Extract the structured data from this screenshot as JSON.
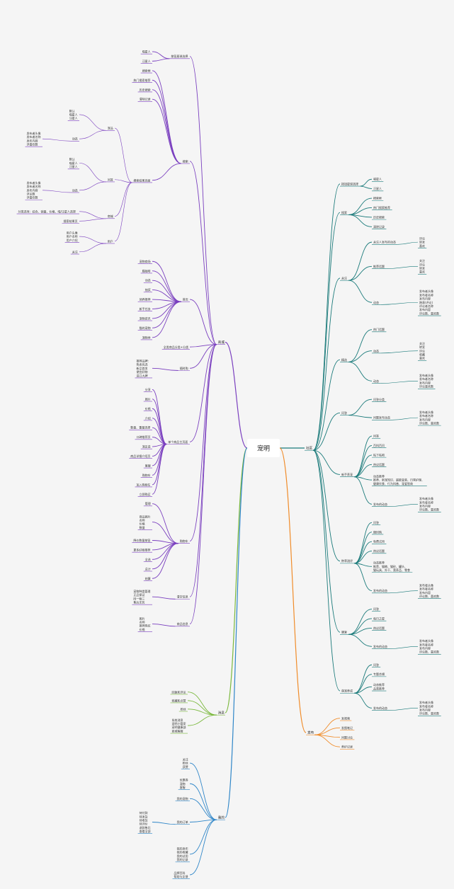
{
  "root": "宠明",
  "branches": [
    {
      "label": "社区",
      "color": "#1a7a7a",
      "children": [
        {
          "label": "按钮星球选择",
          "children": [
            {
              "label": "喵星人"
            },
            {
              "label": "汪星人"
            }
          ]
        },
        {
          "label": "搜索",
          "children": [
            {
              "label": "搜索框"
            },
            {
              "label": "热门搜索推荐"
            },
            {
              "label": "历史搜索"
            },
            {
              "label": "清除记录"
            }
          ]
        },
        {
          "label": "关注",
          "children": [
            {
              "label": "关注人发布的动态",
              "children": [
                {
                  "label": "评论\n转发\n喜欢"
                }
              ]
            },
            {
              "label": "推荐话题",
              "children": [
                {
                  "label": "关注\n评论\n转发\n喜欢"
                }
              ]
            },
            {
              "label": "动态",
              "children": [
                {
                  "label": "发布者头像\n发布者名称\n发布内容\n跨表(评论)\n评论者名称\n发布内容\n评论数、喜欢数"
                }
              ]
            }
          ]
        },
        {
          "label": "精选",
          "children": [
            {
              "label": "热门话题"
            },
            {
              "label": "动态",
              "children": [
                {
                  "label": "关注\n转发\n评论\n收藏\n喜欢"
                }
              ]
            },
            {
              "label": "动态",
              "children": [
                {
                  "label": "发布者头像\n发布者名称\n发布内容\n评论喜欢数"
                }
              ]
            }
          ]
        },
        {
          "label": "问答",
          "children": [
            {
              "label": "问答分类"
            },
            {
              "label": "问题发布动态",
              "children": [
                {
                  "label": "发布者头像\n发布者名称\n发布内容\n评论数、喜欢数"
                }
              ]
            }
          ]
        },
        {
          "label": "新手养宠",
          "children": [
            {
              "label": "问答"
            },
            {
              "label": "百科百问"
            },
            {
              "label": "帖下帖吧"
            },
            {
              "label": "热议话题"
            },
            {
              "label": "动态推荐\n推荐、新宠知识、超能变装、日常护理、\n健康饮食、行为科普、宠爱智商"
            },
            {
              "label": "发布的动态",
              "children": [
                {
                  "label": "发布者头像\n发布者名称\n发布内容\n评论数、喜欢数"
                }
              ]
            }
          ]
        },
        {
          "label": "种草测评",
          "children": [
            {
              "label": "问答"
            },
            {
              "label": "随时购"
            },
            {
              "label": "免费试用"
            },
            {
              "label": "热议话题"
            },
            {
              "label": "动态推荐\n推荐、猫粮、猫砂、罐头、\n猫玩具、外干、营养品、零食"
            },
            {
              "label": "发布的动态",
              "children": [
                {
                  "label": "发布者头像\n发布者名称\n发布内容\n评论数、喜欢数"
                }
              ]
            }
          ]
        },
        {
          "label": "康复",
          "children": [
            {
              "label": "问答"
            },
            {
              "label": "每日之星"
            },
            {
              "label": "热议话题"
            },
            {
              "label": "发布的动态",
              "children": [
                {
                  "label": "发布者头像\n发布者名称\n发布内容\n评论数、喜欢数"
                }
              ]
            }
          ]
        },
        {
          "label": "萌宠养成",
          "children": [
            {
              "label": "问答"
            },
            {
              "label": "专题合辑"
            },
            {
              "label": "动态推荐\n品类推荐"
            },
            {
              "label": "发布的动态",
              "children": [
                {
                  "label": "发布者头像\n发布者名称\n发布内容\n评论数、喜欢数"
                }
              ]
            }
          ]
        }
      ]
    },
    {
      "label": "发布",
      "color": "#f08c2a",
      "children": [
        {
          "label": "发视频"
        },
        {
          "label": "发图笔记"
        },
        {
          "label": "问题讨论"
        },
        {
          "label": "养护记录"
        }
      ]
    },
    {
      "label": "商城",
      "color": "#7a3fbf",
      "children": [
        {
          "label": "按钮星球选择",
          "children": [
            {
              "label": "喵星人"
            },
            {
              "label": "汪星人"
            }
          ]
        },
        {
          "label": "搜索",
          "children": [
            {
              "label": "搜索框"
            },
            {
              "label": "热门搜索推荐"
            },
            {
              "label": "历史搜索"
            },
            {
              "label": "清除记录"
            },
            {
              "label": "搜索结果页面",
              "children": [
                {
                  "label": "宠品",
                  "children": [
                    {
                      "label": "默认\n喵星人\n汪星人"
                    },
                    {
                      "label": "动态",
                      "children": [
                        {
                          "label": "发布者头像\n发布者名称\n发布内容\n评喜欢数"
                        }
                      ]
                    }
                  ]
                },
                {
                  "label": "问答",
                  "children": [
                    {
                      "label": "默认\n喵星人\n汪星人"
                    },
                    {
                      "label": "动态",
                      "children": [
                        {
                          "label": "发布者头像\n发布者名称\n发布内容\n评论数\n评喜欢数"
                        }
                      ]
                    }
                  ]
                },
                {
                  "label": "商城",
                  "children": [
                    {
                      "label": "分类选项：综合、销量、价格、喵/汪星人选择"
                    },
                    {
                      "label": "搜索结果页"
                    }
                  ]
                },
                {
                  "label": "用户",
                  "children": [
                    {
                      "label": "用户头像\n用户名称\n用户介绍"
                    },
                    {
                      "label": "关注"
                    }
                  ]
                }
              ]
            }
          ]
        },
        {
          "label": "首页",
          "children": [
            {
              "label": "宠物商场"
            },
            {
              "label": "猫咖啡"
            },
            {
              "label": "动态"
            },
            {
              "label": "抽奖"
            },
            {
              "label": "领养推荐"
            },
            {
              "label": "新手任务"
            },
            {
              "label": "宠物资讯"
            },
            {
              "label": "猫的宠物"
            },
            {
              "label": "宠物秀"
            }
          ]
        },
        {
          "label": "全类商品分类+分类"
        },
        {
          "label": "随时购",
          "children": [
            {
              "label": "推荐品牌：\n热卖优选\n新品首发\n便宜好物\n进口大牌"
            }
          ]
        },
        {
          "label": "单个商品主页面",
          "children": [
            {
              "label": "分享"
            },
            {
              "label": "图片"
            },
            {
              "label": "价格"
            },
            {
              "label": "介绍"
            },
            {
              "label": "数量、重量选择"
            },
            {
              "label": "口碑推荐页"
            },
            {
              "label": "宠友说"
            },
            {
              "label": "商品详细介绍页"
            },
            {
              "label": "客服"
            },
            {
              "label": "购物车"
            },
            {
              "label": "加入购物车"
            },
            {
              "label": "立即购买"
            }
          ]
        },
        {
          "label": "购物车",
          "children": [
            {
              "label": "管理"
            },
            {
              "label": "商品图片\n名称\n价格\n数量"
            },
            {
              "label": "降价数量按钮"
            },
            {
              "label": "更多好物推荐"
            },
            {
              "label": "全选"
            },
            {
              "label": "总计"
            },
            {
              "label": "结算"
            }
          ]
        },
        {
          "label": "清空信息",
          "children": [
            {
              "label": "宠物种类管理\n正品保证\n同一物三\n售后无忧"
            }
          ]
        },
        {
          "label": "商品信息",
          "children": [
            {
              "label": "图片\n名称\n推荐购买\n价格"
            }
          ]
        }
      ]
    },
    {
      "label": "消息",
      "color": "#7ab83c",
      "children": [
        {
          "label": "回复和评论"
        },
        {
          "label": "收藏和点赞"
        },
        {
          "label": "粉丝"
        },
        {
          "label": "系统消息\n宠明小管家\n宠明健康部\n商城客服"
        }
      ]
    },
    {
      "label": "我的",
      "color": "#2f86c8",
      "children": [
        {
          "label": "关注\n粉丝\n获赞"
        },
        {
          "label": "优惠券\n宠物\n客服"
        },
        {
          "label": "我的宠物"
        },
        {
          "label": "我的订单",
          "children": [
            {
              "label": "待付款\n待发货\n待收货\n待评价\n退款售后\n查看全部"
            }
          ]
        },
        {
          "label": "我的发布\n我的收藏\n我的试用\n我的记录"
        },
        {
          "label": "品牌百科\n帮助与反馈"
        }
      ]
    }
  ]
}
